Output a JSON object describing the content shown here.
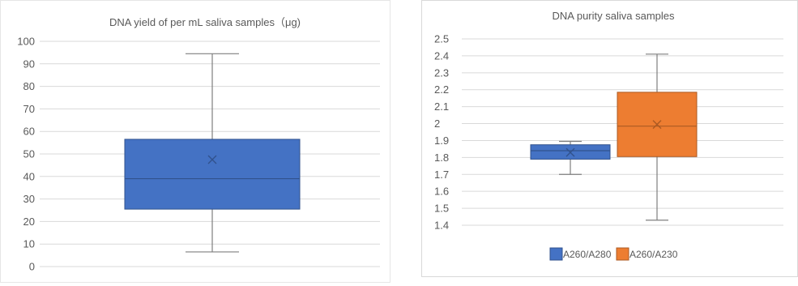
{
  "charts": [
    {
      "title": "DNA yield of per mL saliva samples（μg)",
      "ylim": [
        0,
        100
      ],
      "ticks": [
        0,
        10,
        20,
        30,
        40,
        50,
        60,
        70,
        80,
        90,
        100
      ],
      "box": {
        "min": 6.5,
        "q1": 25.5,
        "median": 39,
        "q3": 56.5,
        "max": 94.5,
        "mean": 47.5
      }
    },
    {
      "title": "DNA purity saliva samples",
      "ylim": [
        1.4,
        2.5
      ],
      "ticks": [
        1.4,
        1.5,
        1.6,
        1.7,
        1.8,
        1.9,
        2,
        2.1,
        2.2,
        2.3,
        2.4,
        2.5
      ],
      "legend": [
        "A260/A280",
        "A260/A230"
      ]
    }
  ],
  "chart_data": [
    {
      "type": "box",
      "title": "DNA yield of per mL saliva samples（μg)",
      "ylim": [
        0,
        100
      ],
      "grid": true,
      "series": [
        {
          "min": 6.5,
          "q1": 25.5,
          "median": 39,
          "q3": 56.5,
          "max": 94.5,
          "mean": 47.5,
          "color": "#4472c4"
        }
      ]
    },
    {
      "type": "box",
      "title": "DNA purity saliva samples",
      "ylim": [
        1.4,
        2.5
      ],
      "grid": true,
      "legend_position": "bottom",
      "series": [
        {
          "name": "A260/A280",
          "min": 1.7,
          "q1": 1.79,
          "median": 1.84,
          "q3": 1.875,
          "max": 1.895,
          "mean": 1.83,
          "color": "#4472c4"
        },
        {
          "name": "A260/A230",
          "min": 1.43,
          "q1": 1.805,
          "median": 1.985,
          "q3": 2.185,
          "max": 2.41,
          "mean": 1.995,
          "color": "#ed7d31"
        }
      ]
    }
  ]
}
